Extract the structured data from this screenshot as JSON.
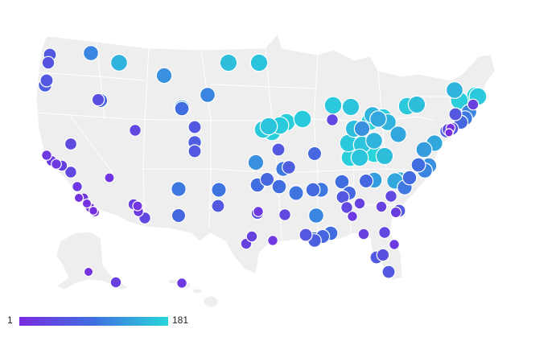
{
  "legend": {
    "min_label": "1",
    "max_label": "181"
  },
  "colors": {
    "low": "#7a2be0",
    "mid": "#3f6fe0",
    "high": "#28d6db",
    "land": "#eeeeee"
  },
  "chart_data": {
    "type": "bubble-map",
    "value_range": [
      1,
      181
    ],
    "points": [
      {
        "v": 60
      },
      {
        "v": 55
      },
      {
        "v": 60
      },
      {
        "v": 70
      },
      {
        "v": 150
      },
      {
        "v": 110
      },
      {
        "v": 160
      },
      {
        "v": 165
      },
      {
        "v": 50
      },
      {
        "v": 80
      },
      {
        "v": 120
      },
      {
        "v": 110
      },
      {
        "v": 90
      },
      {
        "v": 60
      },
      {
        "v": 40
      },
      {
        "v": 45
      },
      {
        "v": 20
      },
      {
        "v": 25
      },
      {
        "v": 20
      },
      {
        "v": 30
      },
      {
        "v": 40
      },
      {
        "v": 20
      },
      {
        "v": 10
      },
      {
        "v": 15
      },
      {
        "v": 10
      },
      {
        "v": 15
      },
      {
        "v": 8
      },
      {
        "v": 10
      },
      {
        "v": 15
      },
      {
        "v": 30
      },
      {
        "v": 15
      },
      {
        "v": 20
      },
      {
        "v": 40
      },
      {
        "v": 100
      },
      {
        "v": 80
      },
      {
        "v": 95
      },
      {
        "v": 60
      },
      {
        "v": 70
      },
      {
        "v": 60
      },
      {
        "v": 130
      },
      {
        "v": 120
      },
      {
        "v": 90
      },
      {
        "v": 100
      },
      {
        "v": 80
      },
      {
        "v": 170
      },
      {
        "v": 165
      },
      {
        "v": 150
      },
      {
        "v": 140
      },
      {
        "v": 150
      },
      {
        "v": 40
      },
      {
        "v": 120
      },
      {
        "v": 175
      },
      {
        "v": 170
      },
      {
        "v": 165
      },
      {
        "v": 170
      },
      {
        "v": 175
      },
      {
        "v": 170
      },
      {
        "v": 160
      },
      {
        "v": 180
      },
      {
        "v": 175
      },
      {
        "v": 170
      },
      {
        "v": 160
      },
      {
        "v": 170
      },
      {
        "v": 165
      },
      {
        "v": 150
      },
      {
        "v": 165
      },
      {
        "v": 180
      },
      {
        "v": 175
      },
      {
        "v": 160
      },
      {
        "v": 140
      },
      {
        "v": 150
      },
      {
        "v": 175
      },
      {
        "v": 170
      },
      {
        "v": 181
      },
      {
        "v": 60
      },
      {
        "v": 80
      },
      {
        "v": 70
      },
      {
        "v": 90
      },
      {
        "v": 95
      },
      {
        "v": 85
      },
      {
        "v": 100
      },
      {
        "v": 110
      },
      {
        "v": 90
      },
      {
        "v": 80
      },
      {
        "v": 30
      },
      {
        "v": 20
      },
      {
        "v": 40
      },
      {
        "v": 60
      },
      {
        "v": 80
      },
      {
        "v": 130
      },
      {
        "v": 140
      },
      {
        "v": 150
      },
      {
        "v": 100
      },
      {
        "v": 85
      },
      {
        "v": 90
      },
      {
        "v": 110
      },
      {
        "v": 120
      },
      {
        "v": 130
      },
      {
        "v": 140
      },
      {
        "v": 30
      },
      {
        "v": 40
      },
      {
        "v": 60
      },
      {
        "v": 25
      },
      {
        "v": 70
      },
      {
        "v": 45
      },
      {
        "v": 55
      },
      {
        "v": 60
      },
      {
        "v": 100
      },
      {
        "v": 110
      },
      {
        "v": 80
      },
      {
        "v": 30
      },
      {
        "v": 10
      },
      {
        "v": 5
      },
      {
        "v": 20
      },
      {
        "v": 50
      },
      {
        "v": 30
      },
      {
        "v": 30
      },
      {
        "v": 20
      },
      {
        "v": 40
      },
      {
        "v": 60
      },
      {
        "v": 90
      },
      {
        "v": 80
      },
      {
        "v": 70
      },
      {
        "v": 90
      },
      {
        "v": 30
      },
      {
        "v": 40
      },
      {
        "v": 20
      },
      {
        "v": 50
      },
      {
        "v": 60
      },
      {
        "v": 60
      },
      {
        "v": 10
      },
      {
        "v": 30
      },
      {
        "v": 20
      }
    ]
  }
}
